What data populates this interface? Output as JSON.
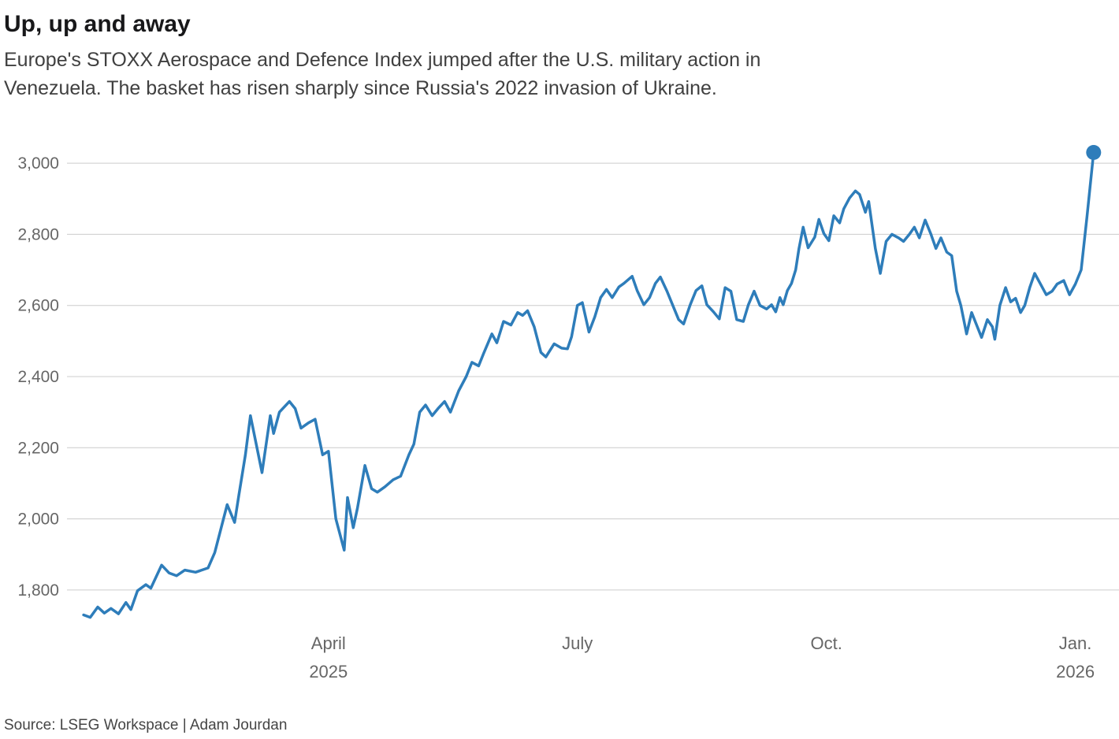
{
  "header": {
    "title": "Up, up and away",
    "subtitle_lines": [
      "Europe's STOXX Aerospace and Defence Index jumped after the U.S. military action in",
      "Venezuela. The basket has risen sharply since Russia's 2022 invasion of Ukraine."
    ]
  },
  "footer": {
    "source": "Source: LSEG Workspace | Adam Jourdan"
  },
  "colors": {
    "line": "#2e7dba",
    "grid": "#cccccc",
    "tick_text": "#666666"
  },
  "chart_data": {
    "type": "line",
    "title": "Up, up and away",
    "subtitle": "Europe's STOXX Aerospace and Defence Index jumped after the U.S. military action in Venezuela. The basket has risen sharply since Russia's 2022 invasion of Ukraine.",
    "xlabel": "",
    "ylabel": "",
    "x_unit": "months since start of Jan 2025 (0 = Jan 2025, 12 = Jan 2026)",
    "xlim": [
      -0.15,
      12.45
    ],
    "ylim": [
      1700,
      3060
    ],
    "grid": true,
    "legend": "none",
    "line_color": "#2e7dba",
    "grid_color": "#cccccc",
    "tick_color": "#666666",
    "endpoint_dot": true,
    "yticks": [
      {
        "value": 1800,
        "label": "1,800"
      },
      {
        "value": 2000,
        "label": "2,000"
      },
      {
        "value": 2200,
        "label": "2,200"
      },
      {
        "value": 2400,
        "label": "2,400"
      },
      {
        "value": 2600,
        "label": "2,600"
      },
      {
        "value": 2800,
        "label": "2,800"
      },
      {
        "value": 3000,
        "label": "3,000"
      }
    ],
    "xticks": [
      {
        "pos": 3,
        "label": "April",
        "sublabel": "2025"
      },
      {
        "pos": 6,
        "label": "July",
        "sublabel": ""
      },
      {
        "pos": 9,
        "label": "Oct.",
        "sublabel": ""
      },
      {
        "pos": 12,
        "label": "Jan.",
        "sublabel": "2026"
      }
    ],
    "series": [
      {
        "name": "STOXX Aerospace and Defence Index",
        "points": [
          [
            0.05,
            1730
          ],
          [
            0.13,
            1723
          ],
          [
            0.22,
            1752
          ],
          [
            0.3,
            1735
          ],
          [
            0.38,
            1748
          ],
          [
            0.47,
            1733
          ],
          [
            0.56,
            1765
          ],
          [
            0.62,
            1745
          ],
          [
            0.7,
            1798
          ],
          [
            0.8,
            1815
          ],
          [
            0.86,
            1805
          ],
          [
            0.99,
            1870
          ],
          [
            1.08,
            1848
          ],
          [
            1.17,
            1840
          ],
          [
            1.27,
            1856
          ],
          [
            1.4,
            1850
          ],
          [
            1.55,
            1862
          ],
          [
            1.63,
            1905
          ],
          [
            1.78,
            2040
          ],
          [
            1.87,
            1990
          ],
          [
            1.92,
            2065
          ],
          [
            2.0,
            2180
          ],
          [
            2.06,
            2290
          ],
          [
            2.2,
            2130
          ],
          [
            2.3,
            2290
          ],
          [
            2.34,
            2240
          ],
          [
            2.41,
            2300
          ],
          [
            2.53,
            2330
          ],
          [
            2.6,
            2310
          ],
          [
            2.67,
            2255
          ],
          [
            2.76,
            2270
          ],
          [
            2.84,
            2280
          ],
          [
            2.93,
            2180
          ],
          [
            3.0,
            2190
          ],
          [
            3.09,
            2000
          ],
          [
            3.19,
            1912
          ],
          [
            3.23,
            2060
          ],
          [
            3.3,
            1975
          ],
          [
            3.35,
            2030
          ],
          [
            3.44,
            2150
          ],
          [
            3.52,
            2085
          ],
          [
            3.59,
            2075
          ],
          [
            3.68,
            2090
          ],
          [
            3.78,
            2110
          ],
          [
            3.87,
            2120
          ],
          [
            3.97,
            2180
          ],
          [
            4.03,
            2210
          ],
          [
            4.1,
            2300
          ],
          [
            4.17,
            2320
          ],
          [
            4.25,
            2290
          ],
          [
            4.32,
            2310
          ],
          [
            4.4,
            2330
          ],
          [
            4.47,
            2300
          ],
          [
            4.57,
            2360
          ],
          [
            4.66,
            2400
          ],
          [
            4.73,
            2440
          ],
          [
            4.81,
            2430
          ],
          [
            4.87,
            2465
          ],
          [
            4.97,
            2520
          ],
          [
            5.03,
            2495
          ],
          [
            5.11,
            2555
          ],
          [
            5.2,
            2545
          ],
          [
            5.28,
            2580
          ],
          [
            5.34,
            2572
          ],
          [
            5.4,
            2585
          ],
          [
            5.48,
            2540
          ],
          [
            5.56,
            2468
          ],
          [
            5.62,
            2455
          ],
          [
            5.72,
            2492
          ],
          [
            5.81,
            2480
          ],
          [
            5.88,
            2478
          ],
          [
            5.93,
            2512
          ],
          [
            6.0,
            2600
          ],
          [
            6.06,
            2608
          ],
          [
            6.14,
            2525
          ],
          [
            6.21,
            2568
          ],
          [
            6.28,
            2622
          ],
          [
            6.35,
            2645
          ],
          [
            6.42,
            2622
          ],
          [
            6.5,
            2652
          ],
          [
            6.56,
            2662
          ],
          [
            6.66,
            2682
          ],
          [
            6.72,
            2642
          ],
          [
            6.8,
            2602
          ],
          [
            6.87,
            2622
          ],
          [
            6.94,
            2662
          ],
          [
            7.0,
            2680
          ],
          [
            7.08,
            2640
          ],
          [
            7.15,
            2600
          ],
          [
            7.22,
            2560
          ],
          [
            7.28,
            2548
          ],
          [
            7.36,
            2602
          ],
          [
            7.43,
            2642
          ],
          [
            7.5,
            2655
          ],
          [
            7.56,
            2602
          ],
          [
            7.64,
            2582
          ],
          [
            7.71,
            2562
          ],
          [
            7.78,
            2650
          ],
          [
            7.85,
            2640
          ],
          [
            7.92,
            2560
          ],
          [
            8.0,
            2555
          ],
          [
            8.06,
            2602
          ],
          [
            8.13,
            2640
          ],
          [
            8.2,
            2600
          ],
          [
            8.28,
            2590
          ],
          [
            8.34,
            2602
          ],
          [
            8.39,
            2582
          ],
          [
            8.44,
            2622
          ],
          [
            8.48,
            2602
          ],
          [
            8.53,
            2642
          ],
          [
            8.58,
            2662
          ],
          [
            8.63,
            2700
          ],
          [
            8.67,
            2760
          ],
          [
            8.72,
            2820
          ],
          [
            8.78,
            2762
          ],
          [
            8.86,
            2792
          ],
          [
            8.91,
            2842
          ],
          [
            8.97,
            2802
          ],
          [
            9.03,
            2782
          ],
          [
            9.09,
            2852
          ],
          [
            9.16,
            2832
          ],
          [
            9.21,
            2872
          ],
          [
            9.28,
            2902
          ],
          [
            9.35,
            2922
          ],
          [
            9.4,
            2912
          ],
          [
            9.47,
            2862
          ],
          [
            9.51,
            2892
          ],
          [
            9.59,
            2760
          ],
          [
            9.65,
            2690
          ],
          [
            9.72,
            2780
          ],
          [
            9.79,
            2800
          ],
          [
            9.87,
            2790
          ],
          [
            9.93,
            2780
          ],
          [
            10.0,
            2800
          ],
          [
            10.06,
            2820
          ],
          [
            10.12,
            2790
          ],
          [
            10.19,
            2840
          ],
          [
            10.26,
            2800
          ],
          [
            10.32,
            2760
          ],
          [
            10.38,
            2790
          ],
          [
            10.45,
            2750
          ],
          [
            10.51,
            2740
          ],
          [
            10.57,
            2640
          ],
          [
            10.62,
            2600
          ],
          [
            10.69,
            2520
          ],
          [
            10.75,
            2580
          ],
          [
            10.81,
            2545
          ],
          [
            10.87,
            2510
          ],
          [
            10.94,
            2560
          ],
          [
            11.0,
            2540
          ],
          [
            11.03,
            2505
          ],
          [
            11.09,
            2600
          ],
          [
            11.16,
            2650
          ],
          [
            11.22,
            2610
          ],
          [
            11.28,
            2620
          ],
          [
            11.34,
            2580
          ],
          [
            11.39,
            2600
          ],
          [
            11.45,
            2650
          ],
          [
            11.51,
            2690
          ],
          [
            11.58,
            2660
          ],
          [
            11.65,
            2630
          ],
          [
            11.72,
            2640
          ],
          [
            11.78,
            2660
          ],
          [
            11.86,
            2670
          ],
          [
            11.93,
            2630
          ],
          [
            12.0,
            2660
          ],
          [
            12.07,
            2700
          ],
          [
            12.14,
            2850
          ],
          [
            12.22,
            3030
          ]
        ]
      }
    ]
  }
}
